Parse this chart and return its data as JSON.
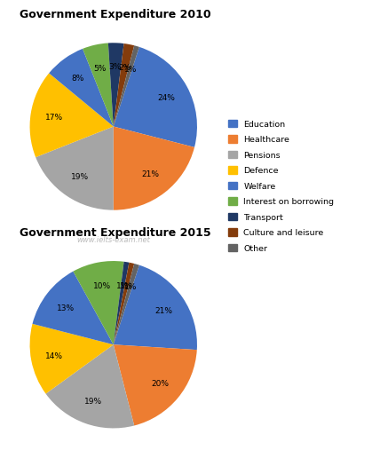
{
  "title_2010": "Government Expenditure 2010",
  "title_2015": "Government Expenditure 2015",
  "categories": [
    "Education",
    "Healthcare",
    "Pensions",
    "Defence",
    "Welfare",
    "Interest on borrowing",
    "Transport",
    "Culture and leisure",
    "Other"
  ],
  "colors": [
    "#4472C4",
    "#ED7D31",
    "#A5A5A5",
    "#FFC000",
    "#4472C4",
    "#70AD47",
    "#1F3864",
    "#843C0C",
    "#636363"
  ],
  "values_2010": [
    24,
    21,
    19,
    17,
    8,
    5,
    3,
    2,
    1
  ],
  "values_2015": [
    21,
    20,
    19,
    14,
    13,
    10,
    1,
    1,
    1
  ],
  "watermark": "www.ielts-exam.net",
  "fig_width": 4.21,
  "fig_height": 5.12
}
